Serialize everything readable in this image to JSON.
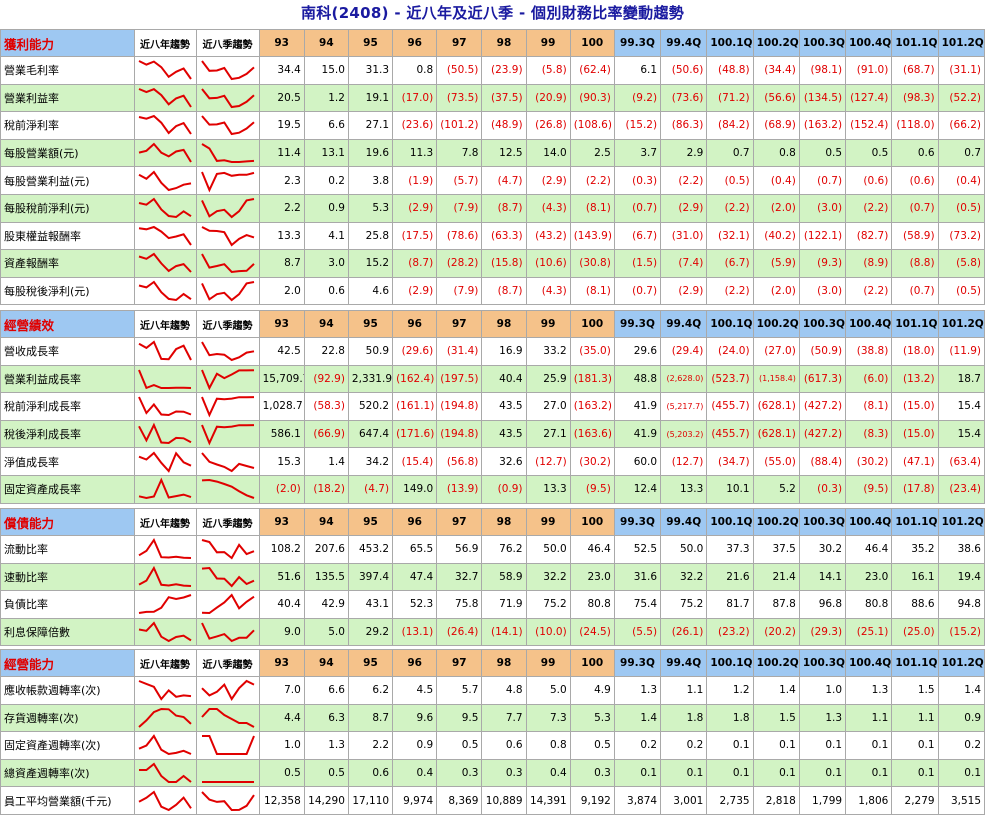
{
  "title": "南科(2408) - 近八年及近八季 - 個別財務比率變動趨勢",
  "trend_year_label": "近八年趨勢",
  "trend_quarter_label": "近八季趨勢",
  "years": [
    "93",
    "94",
    "95",
    "96",
    "97",
    "98",
    "99",
    "100"
  ],
  "quarters": [
    "99.3Q",
    "99.4Q",
    "100.1Q",
    "100.2Q",
    "100.3Q",
    "100.4Q",
    "101.1Q",
    "101.2Q"
  ],
  "sections": [
    {
      "name": "獲利能力",
      "rows": [
        {
          "label": "營業毛利率",
          "y": [
            "34.4",
            "15.0",
            "31.3",
            "0.8",
            "(50.5)",
            "(23.9)",
            "(5.8)",
            "(62.4)"
          ],
          "q": [
            "6.1",
            "(50.6)",
            "(48.8)",
            "(34.4)",
            "(98.1)",
            "(91.0)",
            "(68.7)",
            "(31.1)"
          ]
        },
        {
          "label": "營業利益率",
          "y": [
            "20.5",
            "1.2",
            "19.1",
            "(17.0)",
            "(73.5)",
            "(37.5)",
            "(20.9)",
            "(90.3)"
          ],
          "q": [
            "(9.2)",
            "(73.6)",
            "(71.2)",
            "(56.6)",
            "(134.5)",
            "(127.4)",
            "(98.3)",
            "(52.2)"
          ]
        },
        {
          "label": "稅前淨利率",
          "y": [
            "19.5",
            "6.6",
            "27.1",
            "(23.6)",
            "(101.2)",
            "(48.9)",
            "(26.8)",
            "(108.6)"
          ],
          "q": [
            "(15.2)",
            "(86.3)",
            "(84.2)",
            "(68.9)",
            "(163.2)",
            "(152.4)",
            "(118.0)",
            "(66.2)"
          ]
        },
        {
          "label": "每股營業額(元)",
          "y": [
            "11.4",
            "13.1",
            "19.6",
            "11.3",
            "7.8",
            "12.5",
            "14.0",
            "2.5"
          ],
          "q": [
            "3.7",
            "2.9",
            "0.7",
            "0.8",
            "0.5",
            "0.5",
            "0.6",
            "0.7"
          ]
        },
        {
          "label": "每股營業利益(元)",
          "y": [
            "2.3",
            "0.2",
            "3.8",
            "(1.9)",
            "(5.7)",
            "(4.7)",
            "(2.9)",
            "(2.2)"
          ],
          "q": [
            "(0.3)",
            "(2.2)",
            "(0.5)",
            "(0.4)",
            "(0.7)",
            "(0.6)",
            "(0.6)",
            "(0.4)"
          ]
        },
        {
          "label": "每股稅前淨利(元)",
          "y": [
            "2.2",
            "0.9",
            "5.3",
            "(2.9)",
            "(7.9)",
            "(8.7)",
            "(4.3)",
            "(8.1)"
          ],
          "q": [
            "(0.7)",
            "(2.9)",
            "(2.2)",
            "(2.0)",
            "(3.0)",
            "(2.2)",
            "(0.7)",
            "(0.5)"
          ]
        },
        {
          "label": "股東權益報酬率",
          "y": [
            "13.3",
            "4.1",
            "25.8",
            "(17.5)",
            "(78.6)",
            "(63.3)",
            "(43.2)",
            "(143.9)"
          ],
          "q": [
            "(6.7)",
            "(31.0)",
            "(32.1)",
            "(40.2)",
            "(122.1)",
            "(82.7)",
            "(58.9)",
            "(73.2)"
          ]
        },
        {
          "label": "資產報酬率",
          "y": [
            "8.7",
            "3.0",
            "15.2",
            "(8.7)",
            "(28.2)",
            "(15.8)",
            "(10.6)",
            "(30.8)"
          ],
          "q": [
            "(1.5)",
            "(7.4)",
            "(6.7)",
            "(5.9)",
            "(9.3)",
            "(8.9)",
            "(8.8)",
            "(5.8)"
          ]
        },
        {
          "label": "每股稅後淨利(元)",
          "y": [
            "2.0",
            "0.6",
            "4.6",
            "(2.9)",
            "(7.9)",
            "(8.7)",
            "(4.3)",
            "(8.1)"
          ],
          "q": [
            "(0.7)",
            "(2.9)",
            "(2.2)",
            "(2.0)",
            "(3.0)",
            "(2.2)",
            "(0.7)",
            "(0.5)"
          ]
        }
      ]
    },
    {
      "name": "經營績效",
      "rows": [
        {
          "label": "營收成長率",
          "y": [
            "42.5",
            "22.8",
            "50.9",
            "(29.6)",
            "(31.4)",
            "16.9",
            "33.2",
            "(35.0)"
          ],
          "q": [
            "29.6",
            "(29.4)",
            "(24.0)",
            "(27.0)",
            "(50.9)",
            "(38.8)",
            "(18.0)",
            "(11.9)"
          ]
        },
        {
          "label": "營業利益成長率",
          "y": [
            "15,709.7",
            "(92.9)",
            "2,331.9",
            "(162.4)",
            "(197.5)",
            "40.4",
            "25.9",
            "(181.3)"
          ],
          "q": [
            "48.8",
            "(2,628.0)",
            "(523.7)",
            "(1,158.4)",
            "(617.3)",
            "(6.0)",
            "(13.2)",
            "18.7"
          ]
        },
        {
          "label": "稅前淨利成長率",
          "y": [
            "1,028.7",
            "(58.3)",
            "520.2",
            "(161.1)",
            "(194.8)",
            "43.5",
            "27.0",
            "(163.2)"
          ],
          "q": [
            "41.9",
            "(5,217.7)",
            "(455.7)",
            "(628.1)",
            "(427.2)",
            "(8.1)",
            "(15.0)",
            "15.4"
          ]
        },
        {
          "label": "稅後淨利成長率",
          "y": [
            "586.1",
            "(66.9)",
            "647.4",
            "(171.6)",
            "(194.8)",
            "43.5",
            "27.1",
            "(163.6)"
          ],
          "q": [
            "41.9",
            "(5,203.2)",
            "(455.7)",
            "(628.1)",
            "(427.2)",
            "(8.3)",
            "(15.0)",
            "15.4"
          ]
        },
        {
          "label": "淨值成長率",
          "y": [
            "15.3",
            "1.4",
            "34.2",
            "(15.4)",
            "(56.8)",
            "32.6",
            "(12.7)",
            "(30.2)"
          ],
          "q": [
            "60.0",
            "(12.7)",
            "(34.7)",
            "(55.0)",
            "(88.4)",
            "(30.2)",
            "(47.1)",
            "(63.4)"
          ]
        },
        {
          "label": "固定資產成長率",
          "y": [
            "(2.0)",
            "(18.2)",
            "(4.7)",
            "149.0",
            "(13.9)",
            "(0.9)",
            "13.3",
            "(9.5)"
          ],
          "q": [
            "12.4",
            "13.3",
            "10.1",
            "5.2",
            "(0.3)",
            "(9.5)",
            "(17.8)",
            "(23.4)"
          ]
        }
      ]
    },
    {
      "name": "償債能力",
      "rows": [
        {
          "label": "流動比率",
          "y": [
            "108.2",
            "207.6",
            "453.2",
            "65.5",
            "56.9",
            "76.2",
            "50.0",
            "46.4"
          ],
          "q": [
            "52.5",
            "50.0",
            "37.3",
            "37.5",
            "30.2",
            "46.4",
            "35.2",
            "38.6"
          ]
        },
        {
          "label": "速動比率",
          "y": [
            "51.6",
            "135.5",
            "397.4",
            "47.4",
            "32.7",
            "58.9",
            "32.2",
            "23.0"
          ],
          "q": [
            "31.6",
            "32.2",
            "21.6",
            "21.4",
            "14.1",
            "23.0",
            "16.1",
            "19.4"
          ]
        },
        {
          "label": "負債比率",
          "y": [
            "40.4",
            "42.9",
            "43.1",
            "52.3",
            "75.8",
            "71.9",
            "75.2",
            "80.8"
          ],
          "q": [
            "75.4",
            "75.2",
            "81.7",
            "87.8",
            "96.8",
            "80.8",
            "88.6",
            "94.8"
          ]
        },
        {
          "label": "利息保障倍數",
          "y": [
            "9.0",
            "5.0",
            "29.2",
            "(13.1)",
            "(26.4)",
            "(14.1)",
            "(10.0)",
            "(24.5)"
          ],
          "q": [
            "(5.5)",
            "(26.1)",
            "(23.2)",
            "(20.2)",
            "(29.3)",
            "(25.1)",
            "(25.0)",
            "(15.2)"
          ]
        }
      ]
    },
    {
      "name": "經營能力",
      "rows": [
        {
          "label": "應收帳款週轉率(次)",
          "y": [
            "7.0",
            "6.6",
            "6.2",
            "4.5",
            "5.7",
            "4.8",
            "5.0",
            "4.9"
          ],
          "q": [
            "1.3",
            "1.1",
            "1.2",
            "1.4",
            "1.0",
            "1.3",
            "1.5",
            "1.4"
          ]
        },
        {
          "label": "存貨週轉率(次)",
          "y": [
            "4.4",
            "6.3",
            "8.7",
            "9.6",
            "9.5",
            "7.7",
            "7.3",
            "5.3"
          ],
          "q": [
            "1.4",
            "1.8",
            "1.8",
            "1.5",
            "1.3",
            "1.1",
            "1.1",
            "0.9"
          ]
        },
        {
          "label": "固定資產週轉率(次)",
          "y": [
            "1.0",
            "1.3",
            "2.2",
            "0.9",
            "0.5",
            "0.6",
            "0.8",
            "0.5"
          ],
          "q": [
            "0.2",
            "0.2",
            "0.1",
            "0.1",
            "0.1",
            "0.1",
            "0.1",
            "0.2"
          ]
        },
        {
          "label": "總資產週轉率(次)",
          "y": [
            "0.5",
            "0.5",
            "0.6",
            "0.4",
            "0.3",
            "0.3",
            "0.4",
            "0.3"
          ],
          "q": [
            "0.1",
            "0.1",
            "0.1",
            "0.1",
            "0.1",
            "0.1",
            "0.1",
            "0.1"
          ]
        },
        {
          "label": "員工平均營業額(千元)",
          "y": [
            "12,358",
            "14,290",
            "17,110",
            "9,974",
            "8,369",
            "10,889",
            "14,391",
            "9,192"
          ],
          "q": [
            "3,874",
            "3,001",
            "2,735",
            "2,818",
            "1,799",
            "1,806",
            "2,279",
            "3,515"
          ]
        }
      ]
    }
  ],
  "colors": {
    "title": "#1a1aa0",
    "negative": "#e00000",
    "spark": "#e00000",
    "green_row": "#d2f3c4",
    "year_header": "#f5c28a",
    "quarter_header": "#9ec8f2"
  }
}
